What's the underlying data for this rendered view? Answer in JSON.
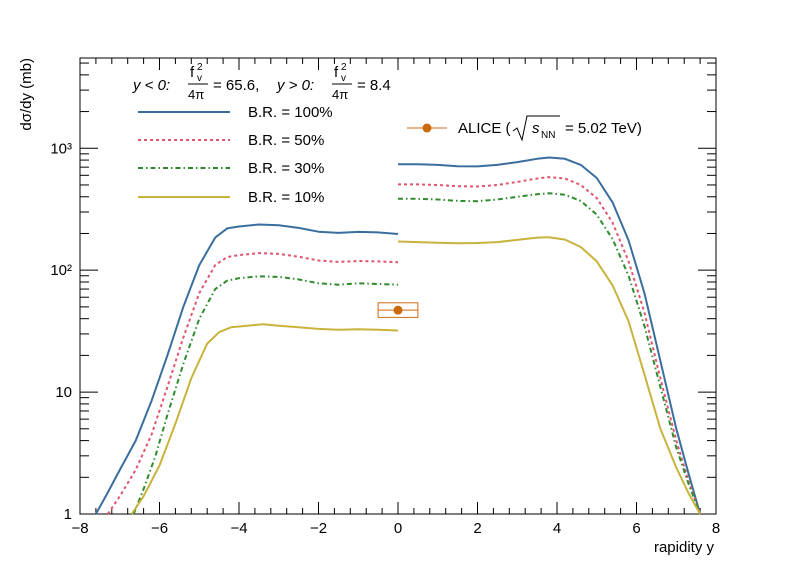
{
  "chart_data": {
    "type": "line",
    "xlabel": "rapidity  y",
    "ylabel": "dσ/dy (mb)",
    "xlim": [
      -8,
      8
    ],
    "ylim": [
      1,
      5500
    ],
    "yscale": "log",
    "x_ticks": [
      -8,
      -6,
      -4,
      -2,
      0,
      2,
      4,
      6,
      8
    ],
    "x_tick_labels": [
      "−8",
      "−6",
      "−4",
      "−2",
      "0",
      "2",
      "4",
      "6",
      "8"
    ],
    "y_ticks": [
      1,
      10,
      100,
      1000
    ],
    "y_tick_labels": [
      "1",
      "10",
      "10²",
      "10³"
    ],
    "annotation": {
      "neg_label": "y < 0:",
      "frac_num": "f",
      "frac_sup": "2",
      "frac_sub": "v",
      "frac_den": "4π",
      "neg_value": "= 65.6,",
      "pos_label": "y > 0:",
      "pos_value": "= 8.4"
    },
    "series": [
      {
        "name": "B.R. = 100%",
        "color": "#3a6e9e",
        "dash": "solid",
        "neg": [
          [
            -7.6,
            1.0
          ],
          [
            -7.3,
            1.5
          ],
          [
            -7.0,
            2.3
          ],
          [
            -6.6,
            4.0
          ],
          [
            -6.2,
            8.5
          ],
          [
            -5.8,
            20
          ],
          [
            -5.4,
            50
          ],
          [
            -5.0,
            110
          ],
          [
            -4.6,
            185
          ],
          [
            -4.3,
            220
          ],
          [
            -4.0,
            228
          ],
          [
            -3.5,
            237
          ],
          [
            -3.0,
            234
          ],
          [
            -2.5,
            222
          ],
          [
            -2.0,
            207
          ],
          [
            -1.5,
            202
          ],
          [
            -1.0,
            206
          ],
          [
            -0.5,
            204
          ],
          [
            0.0,
            198
          ]
        ],
        "pos": [
          [
            0.0,
            740
          ],
          [
            0.5,
            740
          ],
          [
            1.0,
            730
          ],
          [
            1.5,
            712
          ],
          [
            2.0,
            710
          ],
          [
            2.5,
            730
          ],
          [
            3.0,
            770
          ],
          [
            3.5,
            820
          ],
          [
            3.8,
            840
          ],
          [
            4.2,
            820
          ],
          [
            4.6,
            730
          ],
          [
            5.0,
            570
          ],
          [
            5.4,
            360
          ],
          [
            5.8,
            175
          ],
          [
            6.2,
            65
          ],
          [
            6.6,
            18
          ],
          [
            7.0,
            5
          ],
          [
            7.3,
            2.2
          ],
          [
            7.6,
            1.0
          ]
        ]
      },
      {
        "name": "B.R. = 50%",
        "color": "#e0546e",
        "dash": "dotted",
        "neg": [
          [
            -7.3,
            1.0
          ],
          [
            -7.0,
            1.4
          ],
          [
            -6.6,
            2.3
          ],
          [
            -6.2,
            4.5
          ],
          [
            -5.8,
            11
          ],
          [
            -5.4,
            28
          ],
          [
            -5.0,
            65
          ],
          [
            -4.6,
            110
          ],
          [
            -4.3,
            128
          ],
          [
            -4.0,
            133
          ],
          [
            -3.5,
            138
          ],
          [
            -3.0,
            136
          ],
          [
            -2.5,
            129
          ],
          [
            -2.0,
            120
          ],
          [
            -1.5,
            117
          ],
          [
            -1.0,
            119
          ],
          [
            -0.5,
            118
          ],
          [
            0.0,
            116
          ]
        ],
        "pos": [
          [
            0.0,
            505
          ],
          [
            0.5,
            505
          ],
          [
            1.0,
            500
          ],
          [
            1.5,
            488
          ],
          [
            2.0,
            486
          ],
          [
            2.5,
            500
          ],
          [
            3.0,
            530
          ],
          [
            3.5,
            565
          ],
          [
            3.8,
            580
          ],
          [
            4.2,
            565
          ],
          [
            4.6,
            500
          ],
          [
            5.0,
            390
          ],
          [
            5.4,
            245
          ],
          [
            5.8,
            118
          ],
          [
            6.2,
            45
          ],
          [
            6.6,
            13
          ],
          [
            7.0,
            4
          ],
          [
            7.3,
            1.9
          ],
          [
            7.6,
            1.0
          ]
        ]
      },
      {
        "name": "B.R. = 30%",
        "color": "#2e8b2e",
        "dash": "dashdot",
        "neg": [
          [
            -6.65,
            1.0
          ],
          [
            -6.4,
            1.6
          ],
          [
            -6.1,
            3.0
          ],
          [
            -5.8,
            6.5
          ],
          [
            -5.4,
            17
          ],
          [
            -5.0,
            40
          ],
          [
            -4.6,
            70
          ],
          [
            -4.3,
            82
          ],
          [
            -4.0,
            86
          ],
          [
            -3.5,
            89
          ],
          [
            -3.0,
            88
          ],
          [
            -2.5,
            84
          ],
          [
            -2.0,
            78
          ],
          [
            -1.5,
            76
          ],
          [
            -1.0,
            78
          ],
          [
            -0.5,
            77
          ],
          [
            0.0,
            76
          ]
        ],
        "pos": [
          [
            0.0,
            385
          ],
          [
            0.5,
            385
          ],
          [
            1.0,
            380
          ],
          [
            1.5,
            370
          ],
          [
            2.0,
            368
          ],
          [
            2.5,
            380
          ],
          [
            3.0,
            400
          ],
          [
            3.5,
            420
          ],
          [
            3.8,
            428
          ],
          [
            4.2,
            415
          ],
          [
            4.6,
            370
          ],
          [
            5.0,
            285
          ],
          [
            5.4,
            180
          ],
          [
            5.8,
            90
          ],
          [
            6.2,
            35
          ],
          [
            6.6,
            11
          ],
          [
            7.0,
            3.5
          ],
          [
            7.3,
            1.8
          ],
          [
            7.6,
            1.0
          ]
        ]
      },
      {
        "name": "B.R. = 10%",
        "color": "#c8b33c",
        "dash": "solid",
        "neg": [
          [
            -6.7,
            1.0
          ],
          [
            -6.4,
            1.4
          ],
          [
            -6.0,
            2.5
          ],
          [
            -5.6,
            5.5
          ],
          [
            -5.2,
            13
          ],
          [
            -4.8,
            25
          ],
          [
            -4.5,
            31
          ],
          [
            -4.2,
            34
          ],
          [
            -3.8,
            35
          ],
          [
            -3.4,
            36
          ],
          [
            -3.0,
            35
          ],
          [
            -2.5,
            34
          ],
          [
            -2.0,
            33
          ],
          [
            -1.5,
            32.5
          ],
          [
            -1.0,
            32.8
          ],
          [
            -0.5,
            32.5
          ],
          [
            0.0,
            32
          ]
        ],
        "pos": [
          [
            0.0,
            172
          ],
          [
            0.5,
            170
          ],
          [
            1.0,
            168
          ],
          [
            1.5,
            166
          ],
          [
            2.0,
            167
          ],
          [
            2.5,
            170
          ],
          [
            3.0,
            177
          ],
          [
            3.5,
            185
          ],
          [
            3.8,
            186
          ],
          [
            4.2,
            178
          ],
          [
            4.6,
            155
          ],
          [
            5.0,
            118
          ],
          [
            5.4,
            75
          ],
          [
            5.8,
            38
          ],
          [
            6.2,
            14
          ],
          [
            6.6,
            5
          ],
          [
            7.0,
            2.4
          ],
          [
            7.3,
            1.5
          ],
          [
            7.6,
            1.0
          ]
        ]
      }
    ],
    "alice": {
      "label": "ALICE (",
      "energy": "= 5.02 TeV)",
      "sqrt_var": "s",
      "sqrt_sub": "NN",
      "color": "#cc6a10",
      "x": 0.0,
      "y": 47,
      "x_err": 0.5,
      "y_err_low": 41,
      "y_err_high": 54
    }
  }
}
